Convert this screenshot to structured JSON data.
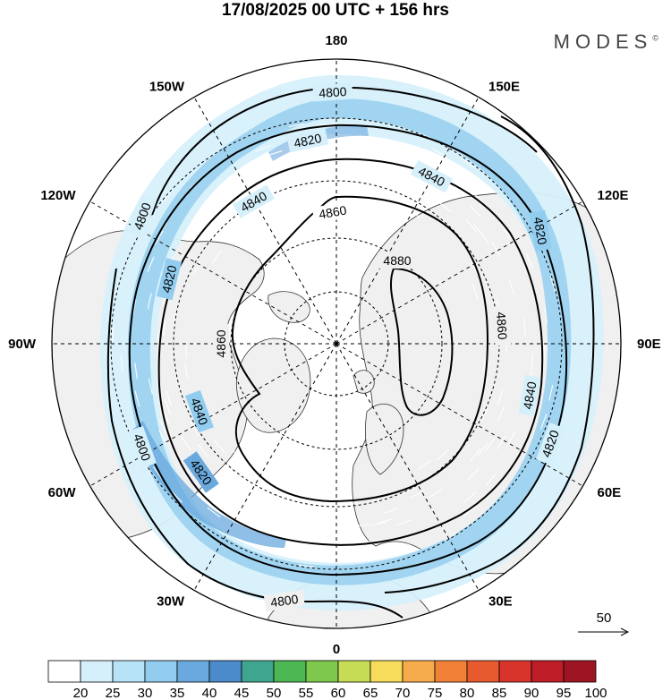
{
  "header": {
    "title": "17/08/2025  00 UTC  + 156 hrs",
    "brand": "MODES",
    "brand_mark": "©"
  },
  "map": {
    "projection": "polar-stereographic-north",
    "longitude_labels": [
      {
        "text": "180",
        "lon": 180
      },
      {
        "text": "150E",
        "lon": 150
      },
      {
        "text": "120E",
        "lon": 120
      },
      {
        "text": "90E",
        "lon": 90
      },
      {
        "text": "60E",
        "lon": 60
      },
      {
        "text": "30E",
        "lon": 30
      },
      {
        "text": "0",
        "lon": 0
      },
      {
        "text": "30W",
        "lon": -30
      },
      {
        "text": "60W",
        "lon": -60
      },
      {
        "text": "90W",
        "lon": -90
      },
      {
        "text": "120W",
        "lon": -120
      },
      {
        "text": "150W",
        "lon": -150
      }
    ],
    "contour_labels": [
      "4800",
      "4820",
      "4840",
      "4860",
      "4880"
    ],
    "contour_values": [
      4800,
      4820,
      4840,
      4860,
      4880
    ],
    "land_color": "#f0f0f0",
    "ocean_color": "#ffffff"
  },
  "vector_legend": {
    "label": "50"
  },
  "colorbar": {
    "ticks": [
      "20",
      "25",
      "30",
      "35",
      "40",
      "45",
      "50",
      "55",
      "60",
      "65",
      "70",
      "75",
      "80",
      "85",
      "90",
      "95",
      "100"
    ],
    "colors": [
      "#ffffff",
      "#d6f0fb",
      "#b7e3f7",
      "#92cdef",
      "#6aa9dd",
      "#4b8bc9",
      "#3fa58f",
      "#4db853",
      "#7ec84e",
      "#c7dc55",
      "#f7dc5c",
      "#f6ab4c",
      "#f08137",
      "#e75a2f",
      "#d8342b",
      "#be1c26",
      "#9d1422"
    ]
  }
}
